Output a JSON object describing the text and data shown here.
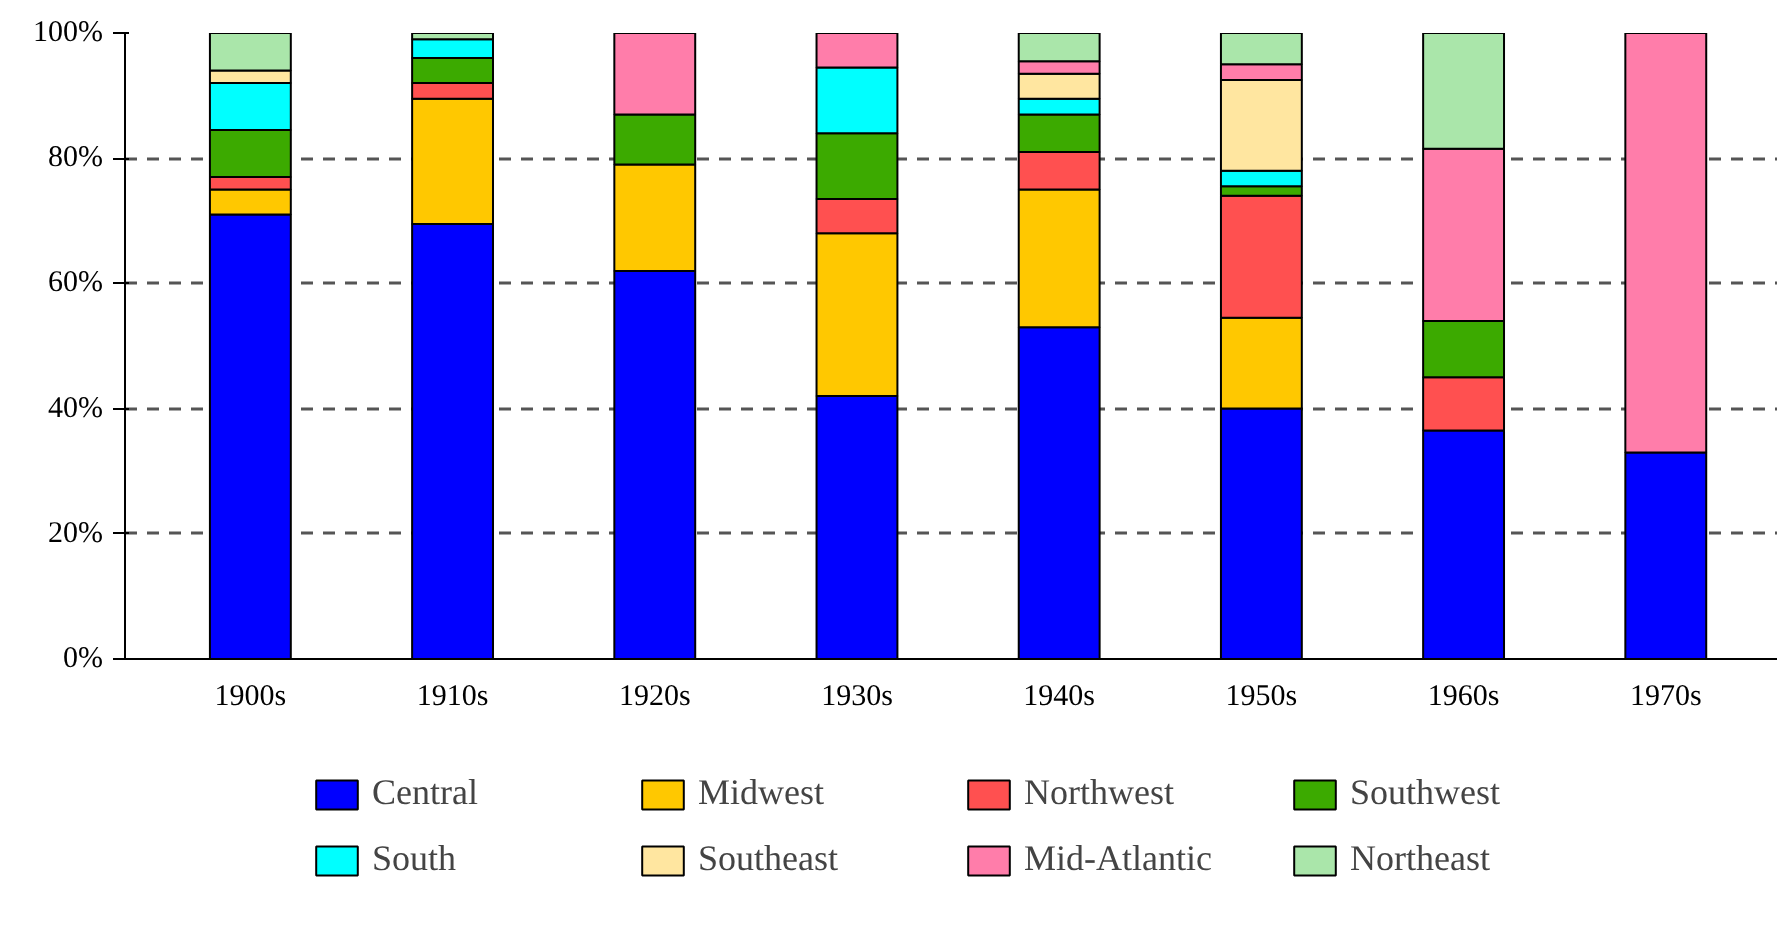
{
  "chart_data": {
    "type": "bar",
    "stacked": true,
    "categories": [
      "1900s",
      "1910s",
      "1920s",
      "1930s",
      "1940s",
      "1950s",
      "1960s",
      "1970s"
    ],
    "series": [
      {
        "name": "Central",
        "color": "#0000ff",
        "values": [
          71,
          69.5,
          62,
          42,
          53,
          40,
          36.5,
          33
        ]
      },
      {
        "name": "Midwest",
        "color": "#ffc800",
        "values": [
          4,
          20,
          17,
          26,
          22,
          14.5,
          null,
          null
        ]
      },
      {
        "name": "Northwest",
        "color": "#ff5050",
        "values": [
          2,
          2.5,
          null,
          5.5,
          6,
          19.5,
          8.5,
          null
        ]
      },
      {
        "name": "Southwest",
        "color": "#3caa00",
        "values": [
          7.5,
          4,
          8,
          10.5,
          6,
          1.5,
          9,
          null
        ]
      },
      {
        "name": "South",
        "color": "#00ffff",
        "values": [
          7.5,
          3,
          null,
          10.5,
          2.5,
          2.5,
          null,
          null
        ]
      },
      {
        "name": "Southeast",
        "color": "#ffe6a0",
        "values": [
          2,
          null,
          null,
          null,
          4,
          14.5,
          null,
          null
        ]
      },
      {
        "name": "Mid-Atlantic",
        "color": "#ff7daa",
        "values": [
          null,
          null,
          13,
          5.5,
          2,
          2.5,
          27.5,
          67
        ]
      },
      {
        "name": "Northeast",
        "color": "#aae6aa",
        "values": [
          6,
          1,
          null,
          null,
          4.5,
          5,
          18.5,
          null
        ]
      }
    ],
    "ylim": [
      0,
      100
    ],
    "yticks": [
      {
        "value": 0,
        "label": "0%"
      },
      {
        "value": 20,
        "label": "20%"
      },
      {
        "value": 40,
        "label": "40%"
      },
      {
        "value": 60,
        "label": "60%"
      },
      {
        "value": 80,
        "label": "80%"
      },
      {
        "value": 100,
        "label": "100%"
      }
    ],
    "grid": "y",
    "legend": "bottom"
  }
}
